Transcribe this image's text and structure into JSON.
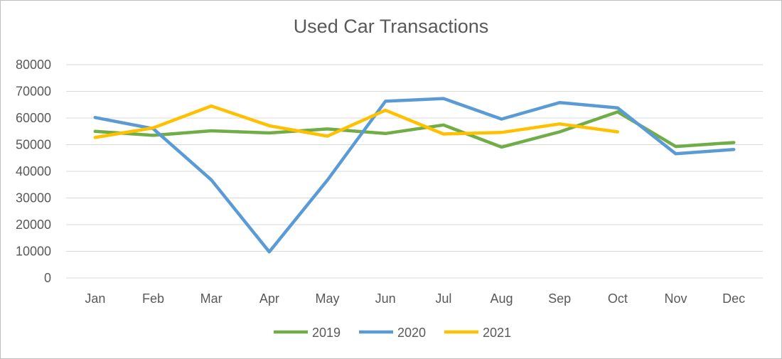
{
  "chart_data": {
    "type": "line",
    "title": "Used Car Transactions",
    "xlabel": "",
    "ylabel": "",
    "categories": [
      "Jan",
      "Feb",
      "Mar",
      "Apr",
      "May",
      "Jun",
      "Jul",
      "Aug",
      "Sep",
      "Oct",
      "Nov",
      "Dec"
    ],
    "ylim": [
      0,
      80000
    ],
    "yticks": [
      "0",
      "10000",
      "20000",
      "30000",
      "40000",
      "50000",
      "60000",
      "70000",
      "80000"
    ],
    "grid": true,
    "legend_position": "bottom",
    "series": [
      {
        "name": "2019",
        "color": "#70ad47",
        "values": [
          55000,
          53500,
          55200,
          54400,
          55900,
          54200,
          57400,
          49100,
          54800,
          62300,
          49300,
          50800
        ]
      },
      {
        "name": "2020",
        "color": "#5b9bd5",
        "values": [
          60200,
          56000,
          36800,
          9800,
          36700,
          66300,
          67300,
          59600,
          65800,
          63800,
          46600,
          48200
        ]
      },
      {
        "name": "2021",
        "color": "#ffc000",
        "values": [
          52700,
          56300,
          64500,
          57100,
          53200,
          62900,
          54000,
          54600,
          57800,
          54800,
          null,
          null
        ]
      }
    ]
  }
}
